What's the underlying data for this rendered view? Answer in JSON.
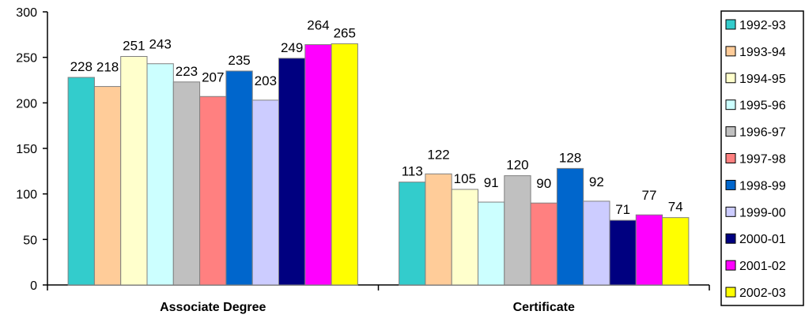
{
  "chart_data": {
    "type": "bar",
    "title": "",
    "xlabel": "",
    "ylabel": "",
    "categories": [
      "Associate Degree",
      "Certificate"
    ],
    "ylim": [
      0,
      300
    ],
    "yticks": [
      0,
      50,
      100,
      150,
      200,
      250,
      300
    ],
    "grid": false,
    "legend_position": "right",
    "series": [
      {
        "name": "1992-93",
        "color": "#33CCCC",
        "values": [
          228,
          113
        ]
      },
      {
        "name": "1993-94",
        "color": "#FFCC99",
        "values": [
          218,
          122
        ]
      },
      {
        "name": "1994-95",
        "color": "#FFFFCC",
        "values": [
          251,
          105
        ]
      },
      {
        "name": "1995-96",
        "color": "#CCFFFF",
        "values": [
          243,
          91
        ]
      },
      {
        "name": "1996-97",
        "color": "#C0C0C0",
        "values": [
          223,
          120
        ]
      },
      {
        "name": "1997-98",
        "color": "#FF8080",
        "values": [
          207,
          90
        ]
      },
      {
        "name": "1998-99",
        "color": "#0066CC",
        "values": [
          235,
          128
        ]
      },
      {
        "name": "1999-00",
        "color": "#CCCCFF",
        "values": [
          203,
          92
        ]
      },
      {
        "name": "2000-01",
        "color": "#000080",
        "values": [
          249,
          71
        ]
      },
      {
        "name": "2001-02",
        "color": "#FF00FF",
        "values": [
          264,
          77
        ]
      },
      {
        "name": "2002-03",
        "color": "#FFFF00",
        "values": [
          265,
          74
        ]
      }
    ]
  }
}
